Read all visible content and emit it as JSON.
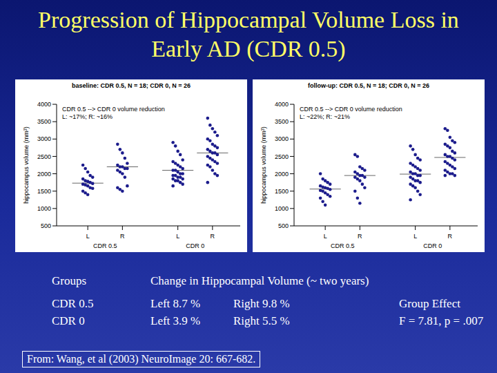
{
  "title": "Progression of Hippocampal Volume Loss in Early AD (CDR 0.5)",
  "chart_data": [
    {
      "type": "scatter",
      "title": "baseline: CDR 0.5, N = 18; CDR 0, N = 26",
      "annotations": [
        "CDR 0.5 --> CDR 0 volume reduction",
        "L: ~17%; R: ~16%"
      ],
      "y_label": "hippocampus volume (mm³)",
      "categories": [
        "L",
        "R",
        "L",
        "R"
      ],
      "groups": [
        "CDR 0.5",
        "CDR 0"
      ],
      "values": [
        [
          2250,
          2150,
          2050,
          1950,
          1900,
          1850,
          1800,
          1780,
          1750,
          1720,
          1700,
          1680,
          1650,
          1600,
          1580,
          1500,
          1450,
          1400
        ],
        [
          2850,
          2700,
          2600,
          2450,
          2300,
          2250,
          2200,
          2200,
          2150,
          2150,
          2100,
          2050,
          2000,
          1900,
          1650,
          1600,
          1550,
          1500
        ],
        [
          2900,
          2800,
          2650,
          2550,
          2400,
          2350,
          2300,
          2250,
          2200,
          2150,
          2100,
          2100,
          2050,
          2000,
          2000,
          1950,
          1950,
          1900,
          1900,
          1850,
          1850,
          1800,
          1800,
          1750,
          1700,
          1650
        ],
        [
          3600,
          3400,
          3300,
          3200,
          3100,
          3000,
          2950,
          2850,
          2800,
          2750,
          2700,
          2650,
          2600,
          2600,
          2550,
          2500,
          2450,
          2400,
          2350,
          2300,
          2250,
          2200,
          2100,
          2000,
          1950,
          1750
        ]
      ],
      "means": [
        1730,
        2200,
        2100,
        2600
      ],
      "color": "#1c1c8c",
      "marker": "circle",
      "ylim": [
        500,
        4000
      ],
      "yticks": [
        500,
        1000,
        1500,
        2000,
        2500,
        3000,
        3500,
        4000
      ]
    },
    {
      "type": "scatter",
      "title": "follow-up: CDR 0.5, N = 18; CDR 0, N = 26",
      "annotations": [
        "CDR 0.5 --> CDR 0 volume reduction",
        "L: ~22%; R: ~21%"
      ],
      "y_label": "hippocampus volume (mm³)",
      "categories": [
        "L",
        "R",
        "L",
        "R"
      ],
      "groups": [
        "CDR 0.5",
        "CDR 0"
      ],
      "values": [
        [
          2000,
          1850,
          1800,
          1750,
          1700,
          1650,
          1620,
          1600,
          1580,
          1550,
          1520,
          1500,
          1450,
          1400,
          1350,
          1300,
          1200,
          1100
        ],
        [
          2550,
          2500,
          2200,
          2150,
          2100,
          2050,
          2000,
          1950,
          1950,
          1900,
          1900,
          1850,
          1800,
          1700,
          1600,
          1500,
          1300,
          1150
        ],
        [
          2800,
          2700,
          2550,
          2450,
          2400,
          2300,
          2250,
          2200,
          2150,
          2100,
          2050,
          2000,
          2000,
          1950,
          1950,
          1900,
          1850,
          1800,
          1800,
          1750,
          1700,
          1650,
          1600,
          1500,
          1400,
          1250
        ],
        [
          3300,
          3250,
          3050,
          2950,
          2900,
          2850,
          2800,
          2750,
          2650,
          2600,
          2550,
          2500,
          2500,
          2450,
          2400,
          2350,
          2300,
          2250,
          2200,
          2150,
          2100,
          2050,
          2000,
          2000,
          1950,
          1950
        ]
      ],
      "means": [
        1560,
        1950,
        1990,
        2470
      ],
      "color": "#1c1c8c",
      "marker": "circle",
      "ylim": [
        500,
        4000
      ],
      "yticks": [
        500,
        1000,
        1500,
        2000,
        2500,
        3000,
        3500,
        4000
      ]
    }
  ],
  "table": {
    "header": [
      "Groups",
      "Change in Hippocampal Volume (~ two years)"
    ],
    "rows": [
      [
        "CDR 0.5",
        "Left 8.7 %",
        "Right 9.8 %",
        "Group Effect"
      ],
      [
        "CDR 0",
        "Left 3.9 %",
        "Right 5.5 %",
        "F = 7.81, p = .007"
      ]
    ]
  },
  "source": "From: Wang, et al (2003) NeuroImage 20: 667-682."
}
